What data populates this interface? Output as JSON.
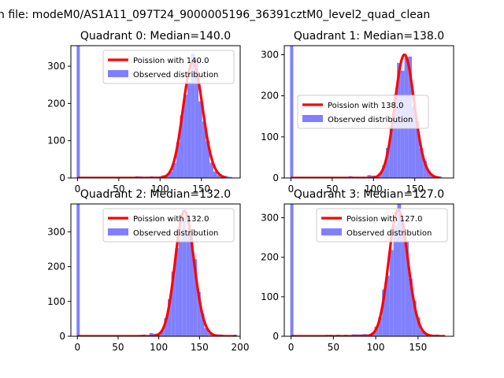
{
  "figure": {
    "suptitle": "n file: modeM0/AS1A11_097T24_9000005196_36391cztM0_level2_quad_clean"
  },
  "colors": {
    "fit_line": "#ff0000",
    "histogram": "#8080ff",
    "axes": "#000000"
  },
  "chart_data": [
    {
      "type": "bar",
      "title": "Quadrant 0: Median=140.0",
      "median": 140.0,
      "xlim": [
        -8,
        197
      ],
      "ylim": [
        0,
        355
      ],
      "xticks": [
        0,
        50,
        100,
        150
      ],
      "yticks": [
        0,
        100,
        200,
        300
      ],
      "legend_position": "upper-right",
      "series": [
        {
          "name": "Poission with 140.0",
          "kind": "line",
          "mean": 140.0,
          "x_range": [
            0,
            180
          ]
        },
        {
          "name": "Observed distribution",
          "kind": "histogram",
          "x": 0,
          "y": 355,
          "bin_width": 4.5,
          "core": {
            "mu": 140,
            "sigma": 11.5,
            "peak": 310
          },
          "spread": [
            70,
            186
          ]
        }
      ]
    },
    {
      "type": "bar",
      "title": "Quadrant 1: Median=138.0",
      "median": 138.0,
      "xlim": [
        -8,
        197
      ],
      "ylim": [
        0,
        322
      ],
      "xticks": [
        0,
        50,
        100,
        150
      ],
      "yticks": [
        0,
        100,
        200,
        300
      ],
      "legend_position": "center-right",
      "series": [
        {
          "name": "Poission with 138.0",
          "kind": "line",
          "mean": 138.0,
          "x_range": [
            0,
            180
          ]
        },
        {
          "name": "Observed distribution",
          "kind": "histogram",
          "x": 0,
          "y": 322,
          "bin_width": 4.5,
          "core": {
            "mu": 138,
            "sigma": 12,
            "peak": 300
          },
          "spread": [
            70,
            182
          ]
        }
      ]
    },
    {
      "type": "bar",
      "title": "Quadrant 2: Median=132.0",
      "median": 132.0,
      "xlim": [
        -8,
        200
      ],
      "ylim": [
        0,
        380
      ],
      "xticks": [
        0,
        50,
        100,
        150,
        200
      ],
      "yticks": [
        0,
        100,
        200,
        300
      ],
      "legend_position": "upper-right",
      "series": [
        {
          "name": "Poission with 132.0",
          "kind": "line",
          "mean": 132.0,
          "x_range": [
            0,
            195
          ]
        },
        {
          "name": "Observed distribution",
          "kind": "histogram",
          "x": 0,
          "y": 380,
          "bin_width": 4.5,
          "core": {
            "mu": 132,
            "sigma": 11.5,
            "peak": 360
          },
          "spread": [
            75,
            193
          ]
        }
      ]
    },
    {
      "type": "bar",
      "title": "Quadrant 3: Median=127.0",
      "median": 127.0,
      "xlim": [
        -8,
        192
      ],
      "ylim": [
        0,
        335
      ],
      "xticks": [
        0,
        50,
        100,
        150
      ],
      "yticks": [
        0,
        100,
        200,
        300
      ],
      "legend_position": "upper-right",
      "series": [
        {
          "name": "Poission with 127.0",
          "kind": "line",
          "mean": 127.0,
          "x_range": [
            0,
            182
          ]
        },
        {
          "name": "Observed distribution",
          "kind": "histogram",
          "x": 0,
          "y": 335,
          "bin_width": 4.5,
          "core": {
            "mu": 127,
            "sigma": 11.5,
            "peak": 320
          },
          "spread": [
            40,
            178
          ]
        }
      ]
    }
  ]
}
